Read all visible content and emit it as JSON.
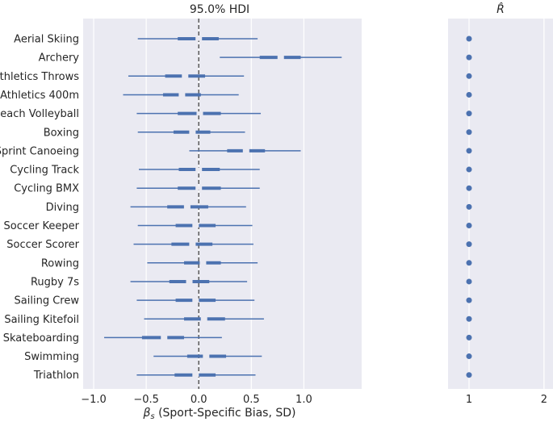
{
  "chart_data": [
    {
      "type": "forest",
      "title": "95.0% HDI",
      "xlabel_symbol": "β",
      "xlabel_subscript": "s",
      "xlabel_rest": " (Sport-Specific Bias, SD)",
      "xlim": [
        -1.1,
        1.55
      ],
      "xticks": [
        -1.0,
        -0.5,
        0.0,
        0.5,
        1.0
      ],
      "xtick_labels": [
        "−1.0",
        "−0.5",
        "0.0",
        "0.5",
        "1.0"
      ],
      "reference_line": 0,
      "categories": [
        "Aerial Skiing",
        "Archery",
        "Athletics Throws",
        "Athletics 400m",
        "Beach Volleyball",
        "Boxing",
        "Sprint Canoeing",
        "Cycling Track",
        "Cycling BMX",
        "Diving",
        "Soccer Keeper",
        "Soccer Scorer",
        "Rowing",
        "Rugby 7s",
        "Sailing Crew",
        "Sailing Kitefoil",
        "Skateboarding",
        "Swimming",
        "Triathlon"
      ],
      "hdi_low": [
        -0.58,
        0.2,
        -0.67,
        -0.72,
        -0.59,
        -0.58,
        -0.09,
        -0.57,
        -0.59,
        -0.65,
        -0.58,
        -0.62,
        -0.49,
        -0.65,
        -0.59,
        -0.52,
        -0.9,
        -0.43,
        -0.59
      ],
      "hdi_high": [
        0.56,
        1.36,
        0.43,
        0.38,
        0.59,
        0.44,
        0.97,
        0.58,
        0.58,
        0.45,
        0.51,
        0.52,
        0.56,
        0.46,
        0.53,
        0.62,
        0.22,
        0.6,
        0.54
      ],
      "iqr_low": [
        -0.2,
        0.58,
        -0.32,
        -0.34,
        -0.2,
        -0.24,
        0.27,
        -0.19,
        -0.2,
        -0.3,
        -0.22,
        -0.26,
        -0.14,
        -0.28,
        -0.22,
        -0.14,
        -0.54,
        -0.11,
        -0.23
      ],
      "iqr_high": [
        0.19,
        0.97,
        0.06,
        0.02,
        0.21,
        0.11,
        0.63,
        0.2,
        0.21,
        0.09,
        0.16,
        0.13,
        0.21,
        0.1,
        0.16,
        0.25,
        -0.14,
        0.26,
        0.16
      ],
      "median": [
        0.0,
        0.78,
        -0.13,
        -0.16,
        0.01,
        -0.06,
        0.45,
        0.0,
        0.0,
        -0.11,
        -0.03,
        -0.06,
        0.04,
        -0.09,
        -0.03,
        0.05,
        -0.33,
        0.07,
        -0.03
      ]
    },
    {
      "type": "scatter",
      "title": "R̂",
      "xlim": [
        0.72,
        2.12
      ],
      "xticks": [
        1,
        2
      ],
      "xtick_labels": [
        "1",
        "2"
      ],
      "values": [
        1.0,
        1.0,
        1.0,
        1.0,
        1.0,
        1.0,
        1.0,
        1.0,
        1.0,
        1.0,
        1.0,
        1.0,
        1.0,
        1.0,
        1.0,
        1.0,
        1.0,
        1.0,
        1.0
      ]
    }
  ],
  "colors": {
    "panel_bg": "#eaeaf2",
    "grid": "#ffffff",
    "series": "#4c72b0",
    "reference": "#5a5a5a",
    "text": "#262626"
  }
}
